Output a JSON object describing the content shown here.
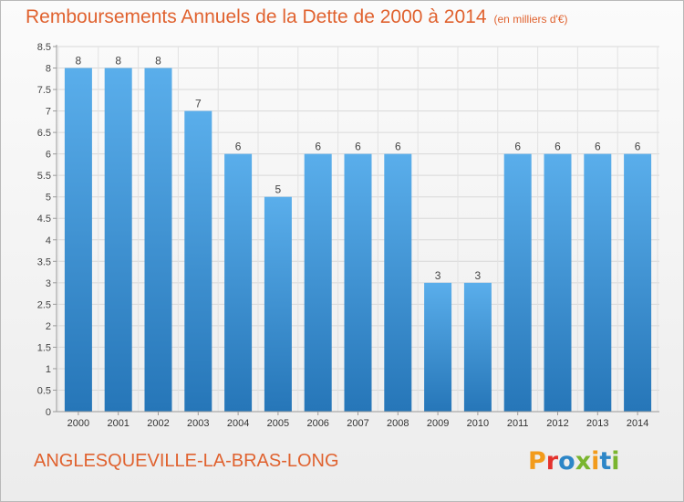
{
  "header": {
    "title": "Remboursements Annuels de la Dette de 2000 à 2014",
    "subtitle": "(en milliers d'€)"
  },
  "footer": {
    "commune": "ANGLESQUEVILLE-LA-BRAS-LONG",
    "logo_text": "Proxiti"
  },
  "colors": {
    "title": "#e0622f",
    "bar_top": "#5aaeeb",
    "bar_bottom": "#2676b8",
    "logo": [
      "#f29b1b",
      "#e4322d",
      "#2d86c7",
      "#7ab52f",
      "#f29b1b",
      "#2d86c7",
      "#7ab52f"
    ]
  },
  "chart_data": {
    "type": "bar",
    "categories": [
      "2000",
      "2001",
      "2002",
      "2003",
      "2004",
      "2005",
      "2006",
      "2007",
      "2008",
      "2009",
      "2010",
      "2011",
      "2012",
      "2013",
      "2014"
    ],
    "values": [
      8,
      8,
      8,
      7,
      6,
      5,
      6,
      6,
      6,
      3,
      3,
      6,
      6,
      6,
      6
    ],
    "ylim": [
      0,
      8.5
    ],
    "yticks": [
      "0",
      "0.5",
      "1",
      "1.5",
      "2",
      "2.5",
      "3",
      "3.5",
      "4",
      "4.5",
      "5",
      "5.5",
      "6",
      "6.5",
      "7",
      "7.5",
      "8",
      "8.5"
    ],
    "grid": true
  }
}
